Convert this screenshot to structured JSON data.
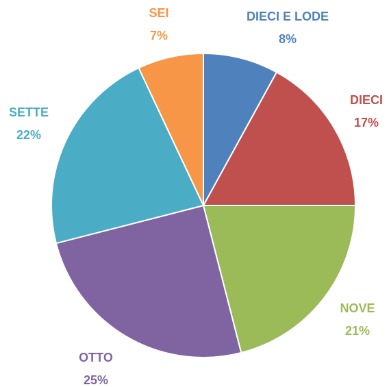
{
  "chart_data": {
    "type": "pie",
    "categories": [
      "DIECI E LODE",
      "DIECI",
      "NOVE",
      "OTTO",
      "SETTE",
      "SEI"
    ],
    "values": [
      8,
      17,
      21,
      25,
      22,
      7
    ],
    "value_labels": [
      "8%",
      "17%",
      "21%",
      "25%",
      "22%",
      "7%"
    ],
    "colors": [
      "#4f81bd",
      "#c0504d",
      "#9bbb59",
      "#8064a2",
      "#4bacc6",
      "#f79646"
    ]
  }
}
